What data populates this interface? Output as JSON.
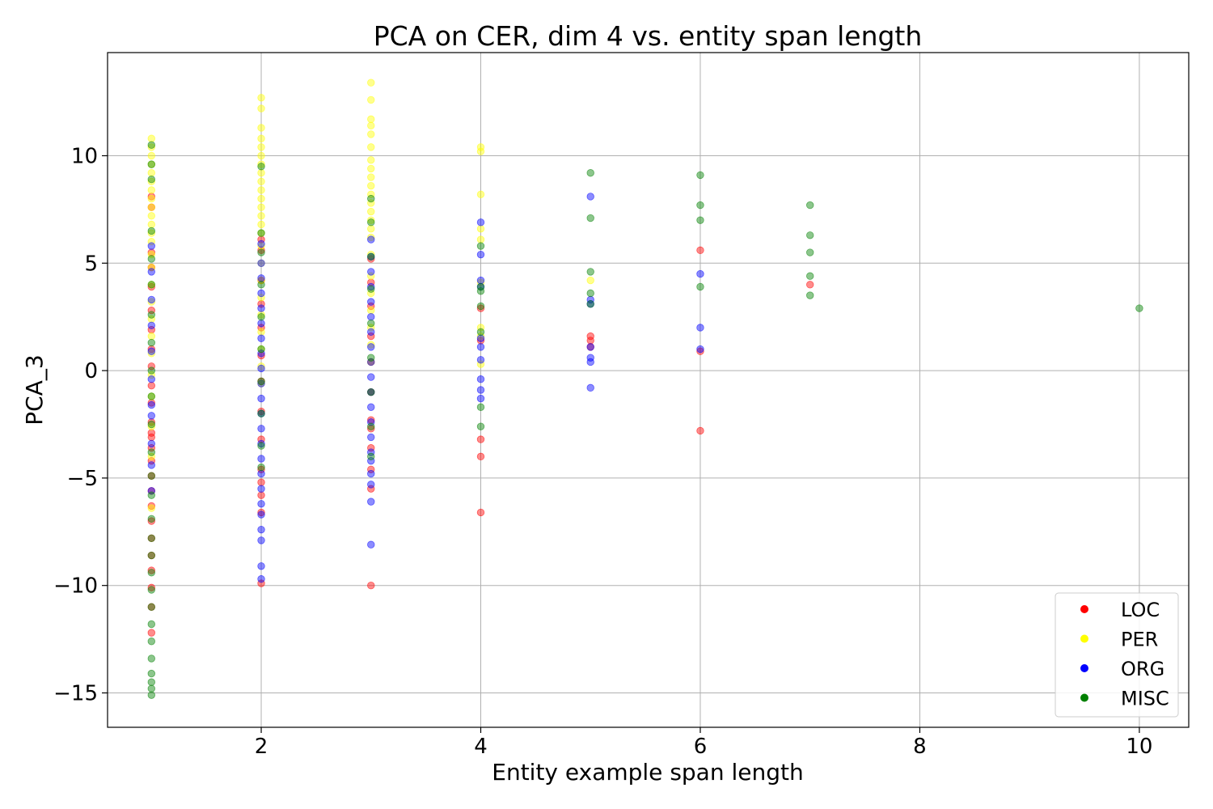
{
  "chart_data": {
    "type": "scatter",
    "title": "PCA on CER, dim 4 vs. entity span length",
    "xlabel": "Entity example span length",
    "ylabel": "PCA_3",
    "xlim": [
      0.6,
      10.45
    ],
    "ylim": [
      -16.6,
      14.8
    ],
    "xticks": [
      2,
      4,
      6,
      8,
      10
    ],
    "xtick_labels": [
      "2",
      "4",
      "6",
      "8",
      "10"
    ],
    "yticks": [
      10,
      5,
      0,
      -5,
      -10,
      -15
    ],
    "ytick_labels": [
      "10",
      "5",
      "0",
      "−5",
      "−10",
      "−15"
    ],
    "grid": true,
    "legend_position": "lower-right",
    "series": [
      {
        "name": "LOC",
        "color": "#ff0000",
        "points": [
          [
            1,
            8.1
          ],
          [
            1,
            7.6
          ],
          [
            1,
            5.5
          ],
          [
            1,
            4.8
          ],
          [
            1,
            3.9
          ],
          [
            1,
            2.8
          ],
          [
            1,
            1.9
          ],
          [
            1,
            1.0
          ],
          [
            1,
            0.2
          ],
          [
            1,
            -0.7
          ],
          [
            1,
            -1.5
          ],
          [
            1,
            -2.4
          ],
          [
            1,
            -2.9
          ],
          [
            1,
            -3.1
          ],
          [
            1,
            -3.6
          ],
          [
            1,
            -4.2
          ],
          [
            1,
            -4.9
          ],
          [
            1,
            -5.6
          ],
          [
            1,
            -6.3
          ],
          [
            1,
            -7.0
          ],
          [
            1,
            -7.8
          ],
          [
            1,
            -8.6
          ],
          [
            1,
            -9.3
          ],
          [
            1,
            -10.1
          ],
          [
            1,
            -11.0
          ],
          [
            1,
            -12.2
          ],
          [
            2,
            6.1
          ],
          [
            2,
            5.6
          ],
          [
            2,
            4.2
          ],
          [
            2,
            3.1
          ],
          [
            2,
            2.0
          ],
          [
            2,
            0.7
          ],
          [
            2,
            -0.5
          ],
          [
            2,
            -1.9
          ],
          [
            2,
            -3.2
          ],
          [
            2,
            -4.6
          ],
          [
            2,
            -5.2
          ],
          [
            2,
            -5.8
          ],
          [
            2,
            -6.6
          ],
          [
            2,
            -9.9
          ],
          [
            3,
            5.2
          ],
          [
            3,
            4.1
          ],
          [
            3,
            3.0
          ],
          [
            3,
            1.6
          ],
          [
            3,
            0.4
          ],
          [
            3,
            -1.0
          ],
          [
            3,
            -2.3
          ],
          [
            3,
            -2.7
          ],
          [
            3,
            -3.6
          ],
          [
            3,
            -4.6
          ],
          [
            3,
            -5.5
          ],
          [
            3,
            -10.0
          ],
          [
            4,
            2.9
          ],
          [
            4,
            1.4
          ],
          [
            4,
            -3.2
          ],
          [
            4,
            -4.0
          ],
          [
            4,
            -6.6
          ],
          [
            5,
            1.6
          ],
          [
            5,
            1.4
          ],
          [
            5,
            1.1
          ],
          [
            6,
            5.6
          ],
          [
            6,
            0.9
          ],
          [
            6,
            -2.8
          ],
          [
            7,
            4.0
          ]
        ]
      },
      {
        "name": "PER",
        "color": "#ffff00",
        "points": [
          [
            1,
            10.8
          ],
          [
            1,
            10.4
          ],
          [
            1,
            10.0
          ],
          [
            1,
            9.6
          ],
          [
            1,
            9.2
          ],
          [
            1,
            8.8
          ],
          [
            1,
            8.4
          ],
          [
            1,
            8.0
          ],
          [
            1,
            7.6
          ],
          [
            1,
            7.2
          ],
          [
            1,
            6.8
          ],
          [
            1,
            6.4
          ],
          [
            1,
            6.0
          ],
          [
            1,
            5.4
          ],
          [
            1,
            4.8
          ],
          [
            1,
            4.0
          ],
          [
            1,
            3.2
          ],
          [
            1,
            2.4
          ],
          [
            1,
            1.6
          ],
          [
            1,
            0.8
          ],
          [
            1,
            -0.2
          ],
          [
            1,
            -1.2
          ],
          [
            1,
            -2.6
          ],
          [
            1,
            -4.0
          ],
          [
            1,
            -6.4
          ],
          [
            2,
            12.7
          ],
          [
            2,
            12.2
          ],
          [
            2,
            11.3
          ],
          [
            2,
            10.8
          ],
          [
            2,
            10.4
          ],
          [
            2,
            10.0
          ],
          [
            2,
            9.6
          ],
          [
            2,
            9.2
          ],
          [
            2,
            8.8
          ],
          [
            2,
            8.4
          ],
          [
            2,
            8.0
          ],
          [
            2,
            7.6
          ],
          [
            2,
            7.2
          ],
          [
            2,
            6.8
          ],
          [
            2,
            6.4
          ],
          [
            2,
            5.8
          ],
          [
            2,
            5.0
          ],
          [
            2,
            4.2
          ],
          [
            2,
            3.4
          ],
          [
            2,
            2.6
          ],
          [
            2,
            1.8
          ],
          [
            2,
            1.0
          ],
          [
            2,
            0.2
          ],
          [
            2,
            -0.6
          ],
          [
            3,
            13.4
          ],
          [
            3,
            12.6
          ],
          [
            3,
            11.7
          ],
          [
            3,
            11.4
          ],
          [
            3,
            11.0
          ],
          [
            3,
            10.4
          ],
          [
            3,
            9.8
          ],
          [
            3,
            9.4
          ],
          [
            3,
            9.0
          ],
          [
            3,
            8.6
          ],
          [
            3,
            8.2
          ],
          [
            3,
            7.8
          ],
          [
            3,
            7.4
          ],
          [
            3,
            7.0
          ],
          [
            3,
            6.6
          ],
          [
            3,
            6.2
          ],
          [
            3,
            5.4
          ],
          [
            3,
            4.4
          ],
          [
            3,
            3.6
          ],
          [
            3,
            2.8
          ],
          [
            3,
            2.0
          ],
          [
            3,
            1.2
          ],
          [
            3,
            0.4
          ],
          [
            4,
            10.4
          ],
          [
            4,
            10.2
          ],
          [
            4,
            8.2
          ],
          [
            4,
            6.6
          ],
          [
            4,
            6.1
          ],
          [
            4,
            4.1
          ],
          [
            4,
            2.0
          ],
          [
            4,
            1.6
          ],
          [
            4,
            0.3
          ],
          [
            5,
            4.2
          ]
        ]
      },
      {
        "name": "ORG",
        "color": "#0000ff",
        "points": [
          [
            1,
            5.8
          ],
          [
            1,
            4.6
          ],
          [
            1,
            3.3
          ],
          [
            1,
            2.1
          ],
          [
            1,
            0.9
          ],
          [
            1,
            -0.4
          ],
          [
            1,
            -1.6
          ],
          [
            1,
            -2.1
          ],
          [
            1,
            -3.4
          ],
          [
            1,
            -4.4
          ],
          [
            1,
            -5.6
          ],
          [
            2,
            5.9
          ],
          [
            2,
            5.0
          ],
          [
            2,
            4.3
          ],
          [
            2,
            3.6
          ],
          [
            2,
            2.9
          ],
          [
            2,
            2.2
          ],
          [
            2,
            1.5
          ],
          [
            2,
            0.8
          ],
          [
            2,
            0.1
          ],
          [
            2,
            -0.6
          ],
          [
            2,
            -1.3
          ],
          [
            2,
            -2.0
          ],
          [
            2,
            -2.7
          ],
          [
            2,
            -3.4
          ],
          [
            2,
            -4.1
          ],
          [
            2,
            -4.8
          ],
          [
            2,
            -5.5
          ],
          [
            2,
            -6.2
          ],
          [
            2,
            -6.7
          ],
          [
            2,
            -7.4
          ],
          [
            2,
            -7.9
          ],
          [
            2,
            -9.1
          ],
          [
            2,
            -9.7
          ],
          [
            3,
            6.1
          ],
          [
            3,
            5.3
          ],
          [
            3,
            4.6
          ],
          [
            3,
            3.9
          ],
          [
            3,
            3.2
          ],
          [
            3,
            2.5
          ],
          [
            3,
            1.8
          ],
          [
            3,
            1.1
          ],
          [
            3,
            0.4
          ],
          [
            3,
            -0.3
          ],
          [
            3,
            -1.0
          ],
          [
            3,
            -1.7
          ],
          [
            3,
            -2.4
          ],
          [
            3,
            -3.1
          ],
          [
            3,
            -3.8
          ],
          [
            3,
            -4.2
          ],
          [
            3,
            -4.8
          ],
          [
            3,
            -5.3
          ],
          [
            3,
            -6.1
          ],
          [
            3,
            -8.1
          ],
          [
            4,
            6.9
          ],
          [
            4,
            5.4
          ],
          [
            4,
            4.2
          ],
          [
            4,
            3.9
          ],
          [
            4,
            1.5
          ],
          [
            4,
            1.1
          ],
          [
            4,
            0.5
          ],
          [
            4,
            -0.4
          ],
          [
            4,
            -0.9
          ],
          [
            4,
            -1.3
          ],
          [
            5,
            8.1
          ],
          [
            5,
            3.3
          ],
          [
            5,
            3.1
          ],
          [
            5,
            1.1
          ],
          [
            5,
            0.6
          ],
          [
            5,
            0.4
          ],
          [
            5,
            -0.8
          ],
          [
            6,
            4.5
          ],
          [
            6,
            2.0
          ],
          [
            6,
            1.0
          ]
        ]
      },
      {
        "name": "MISC",
        "color": "#008000",
        "points": [
          [
            1,
            10.5
          ],
          [
            1,
            9.6
          ],
          [
            1,
            8.9
          ],
          [
            1,
            6.5
          ],
          [
            1,
            5.2
          ],
          [
            1,
            4.0
          ],
          [
            1,
            2.6
          ],
          [
            1,
            1.3
          ],
          [
            1,
            0.0
          ],
          [
            1,
            -1.2
          ],
          [
            1,
            -2.5
          ],
          [
            1,
            -3.8
          ],
          [
            1,
            -4.9
          ],
          [
            1,
            -5.8
          ],
          [
            1,
            -6.9
          ],
          [
            1,
            -7.8
          ],
          [
            1,
            -8.6
          ],
          [
            1,
            -9.4
          ],
          [
            1,
            -10.2
          ],
          [
            1,
            -11.0
          ],
          [
            1,
            -11.8
          ],
          [
            1,
            -12.6
          ],
          [
            1,
            -13.4
          ],
          [
            1,
            -14.1
          ],
          [
            1,
            -14.5
          ],
          [
            1,
            -14.8
          ],
          [
            1,
            -15.1
          ],
          [
            2,
            9.5
          ],
          [
            2,
            6.4
          ],
          [
            2,
            5.5
          ],
          [
            2,
            4.0
          ],
          [
            2,
            2.5
          ],
          [
            2,
            1.0
          ],
          [
            2,
            -0.5
          ],
          [
            2,
            -2.0
          ],
          [
            2,
            -3.5
          ],
          [
            2,
            -4.5
          ],
          [
            3,
            8.0
          ],
          [
            3,
            6.9
          ],
          [
            3,
            5.3
          ],
          [
            3,
            3.8
          ],
          [
            3,
            2.2
          ],
          [
            3,
            0.6
          ],
          [
            3,
            -1.0
          ],
          [
            3,
            -2.6
          ],
          [
            3,
            -4.0
          ],
          [
            4,
            5.8
          ],
          [
            4,
            3.9
          ],
          [
            4,
            3.7
          ],
          [
            4,
            3.0
          ],
          [
            4,
            1.8
          ],
          [
            4,
            -1.7
          ],
          [
            4,
            -2.6
          ],
          [
            5,
            9.2
          ],
          [
            5,
            7.1
          ],
          [
            5,
            4.6
          ],
          [
            5,
            3.6
          ],
          [
            5,
            3.1
          ],
          [
            6,
            9.1
          ],
          [
            6,
            7.7
          ],
          [
            6,
            7.0
          ],
          [
            6,
            3.9
          ],
          [
            7,
            7.7
          ],
          [
            7,
            6.3
          ],
          [
            7,
            5.5
          ],
          [
            7,
            4.4
          ],
          [
            7,
            3.5
          ],
          [
            10,
            2.9
          ]
        ]
      }
    ]
  }
}
